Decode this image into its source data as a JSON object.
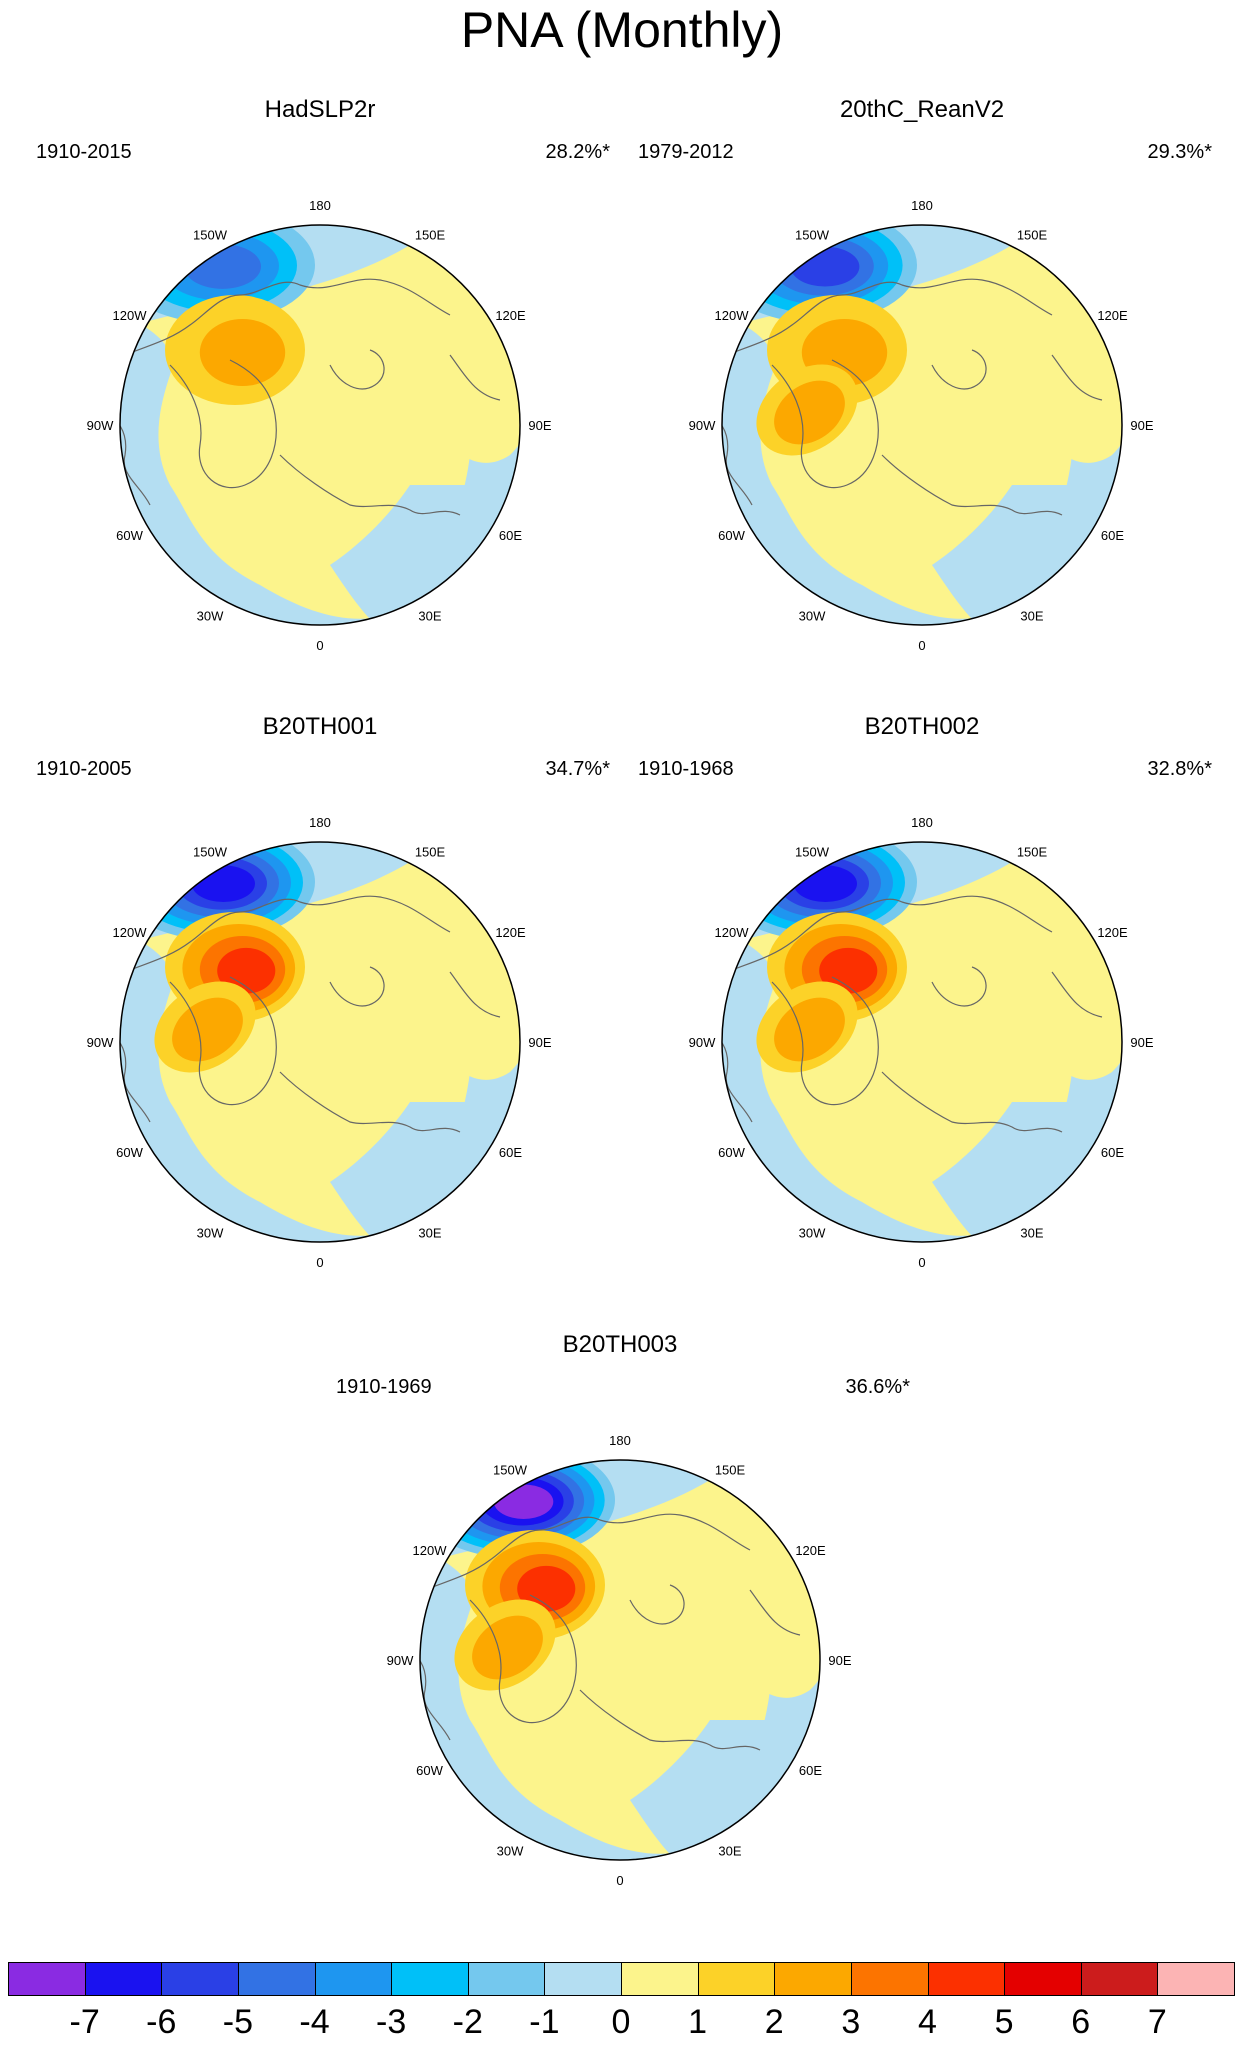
{
  "title": "PNA (Monthly)",
  "panels": [
    {
      "name": "HadSLP2r",
      "period": "1910-2015",
      "variance": "28.2%*",
      "low_levels": [
        -1,
        -2,
        -3,
        -4
      ],
      "high_levels": [
        1,
        2
      ],
      "atlantic_high": [
        0
      ],
      "europe_low": [
        -1
      ]
    },
    {
      "name": "20thC_ReanV2",
      "period": "1979-2012",
      "variance": "29.3%*",
      "low_levels": [
        -1,
        -2,
        -3,
        -4,
        -5
      ],
      "high_levels": [
        1,
        2
      ],
      "atlantic_high": [
        1,
        2
      ],
      "europe_low": [
        -1
      ]
    },
    {
      "name": "B20TH001",
      "period": "1910-2005",
      "variance": "34.7%*",
      "low_levels": [
        -1,
        -2,
        -3,
        -4,
        -5,
        -6
      ],
      "high_levels": [
        1,
        2,
        3,
        4
      ],
      "atlantic_high": [
        1,
        2
      ],
      "europe_low": [
        -1
      ]
    },
    {
      "name": "B20TH002",
      "period": "1910-1968",
      "variance": "32.8%*",
      "low_levels": [
        -1,
        -2,
        -3,
        -4,
        -5,
        -6
      ],
      "high_levels": [
        1,
        2,
        3,
        4
      ],
      "atlantic_high": [
        1,
        2
      ],
      "europe_low": [
        -1
      ]
    },
    {
      "name": "B20TH003",
      "period": "1910-1969",
      "variance": "36.6%*",
      "low_levels": [
        -1,
        -2,
        -3,
        -4,
        -5,
        -6,
        -7
      ],
      "high_levels": [
        1,
        2,
        3,
        4
      ],
      "atlantic_high": [
        1,
        2
      ],
      "europe_low": [
        -1
      ]
    }
  ],
  "longitude_labels": [
    "180",
    "150E",
    "120E",
    "90E",
    "60E",
    "30E",
    "0",
    "30W",
    "60W",
    "90W",
    "120W",
    "150W"
  ],
  "colorbar": {
    "ticks": [
      "-7",
      "-6",
      "-5",
      "-4",
      "-3",
      "-2",
      "-1",
      "0",
      "1",
      "2",
      "3",
      "4",
      "5",
      "6",
      "7"
    ],
    "colors": [
      "#8a2be2",
      "#1a12f0",
      "#2a40e6",
      "#3272e4",
      "#1e96f0",
      "#00c0f8",
      "#74c8ee",
      "#b4def2",
      "#fcf48c",
      "#fcd228",
      "#fca800",
      "#fc7400",
      "#fc3000",
      "#e40000",
      "#cc1c1c",
      "#fcb4b4"
    ]
  },
  "level_colors": {
    "-7": "#8a2be2",
    "-6": "#1a12f0",
    "-5": "#2a40e6",
    "-4": "#3272e4",
    "-3": "#1e96f0",
    "-2": "#00c0f8",
    "-1": "#74c8ee",
    "0": "#b4def2",
    "1": "#fcd228",
    "2": "#fca800",
    "3": "#fc7400",
    "4": "#fc3000"
  },
  "background_color": "#fcf48c",
  "negative_background": "#b4def2"
}
